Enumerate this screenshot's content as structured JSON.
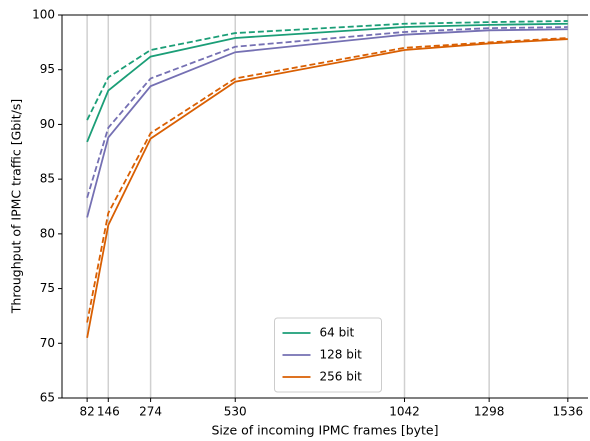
{
  "chart_data": {
    "type": "line",
    "xlabel": "Size of incoming IPMC frames [byte]",
    "ylabel": "Throughput of IPMC traffic [Gbit/s]",
    "x": [
      82,
      146,
      274,
      530,
      1042,
      1298,
      1536
    ],
    "series": [
      {
        "name": "64 bit",
        "color": "#1b9e77",
        "values": [
          88.4,
          93.1,
          96.2,
          97.9,
          98.9,
          99.1,
          99.2
        ]
      },
      {
        "color": "#1b9e77",
        "dash": true,
        "values": [
          90.4,
          94.3,
          96.8,
          98.35,
          99.2,
          99.35,
          99.45
        ]
      },
      {
        "name": "128 bit",
        "color": "#7570b3",
        "values": [
          81.5,
          88.8,
          93.5,
          96.6,
          98.2,
          98.6,
          98.7
        ]
      },
      {
        "color": "#7570b3",
        "dash": true,
        "values": [
          83.3,
          89.7,
          94.2,
          97.1,
          98.45,
          98.8,
          98.9
        ]
      },
      {
        "name": "256 bit",
        "color": "#d95f02",
        "values": [
          70.5,
          80.8,
          88.7,
          93.9,
          96.8,
          97.4,
          97.8
        ]
      },
      {
        "color": "#d95f02",
        "dash": true,
        "values": [
          71.9,
          81.9,
          89.2,
          94.2,
          97.0,
          97.5,
          97.9
        ]
      }
    ],
    "xlim": [
      6,
      1597
    ],
    "ylim": [
      65,
      100
    ],
    "xticks": [
      82,
      146,
      274,
      530,
      1042,
      1298,
      1536
    ],
    "yticks": [
      65,
      70,
      75,
      80,
      85,
      90,
      95,
      100
    ],
    "xgrid": true,
    "legend": "lower center"
  }
}
